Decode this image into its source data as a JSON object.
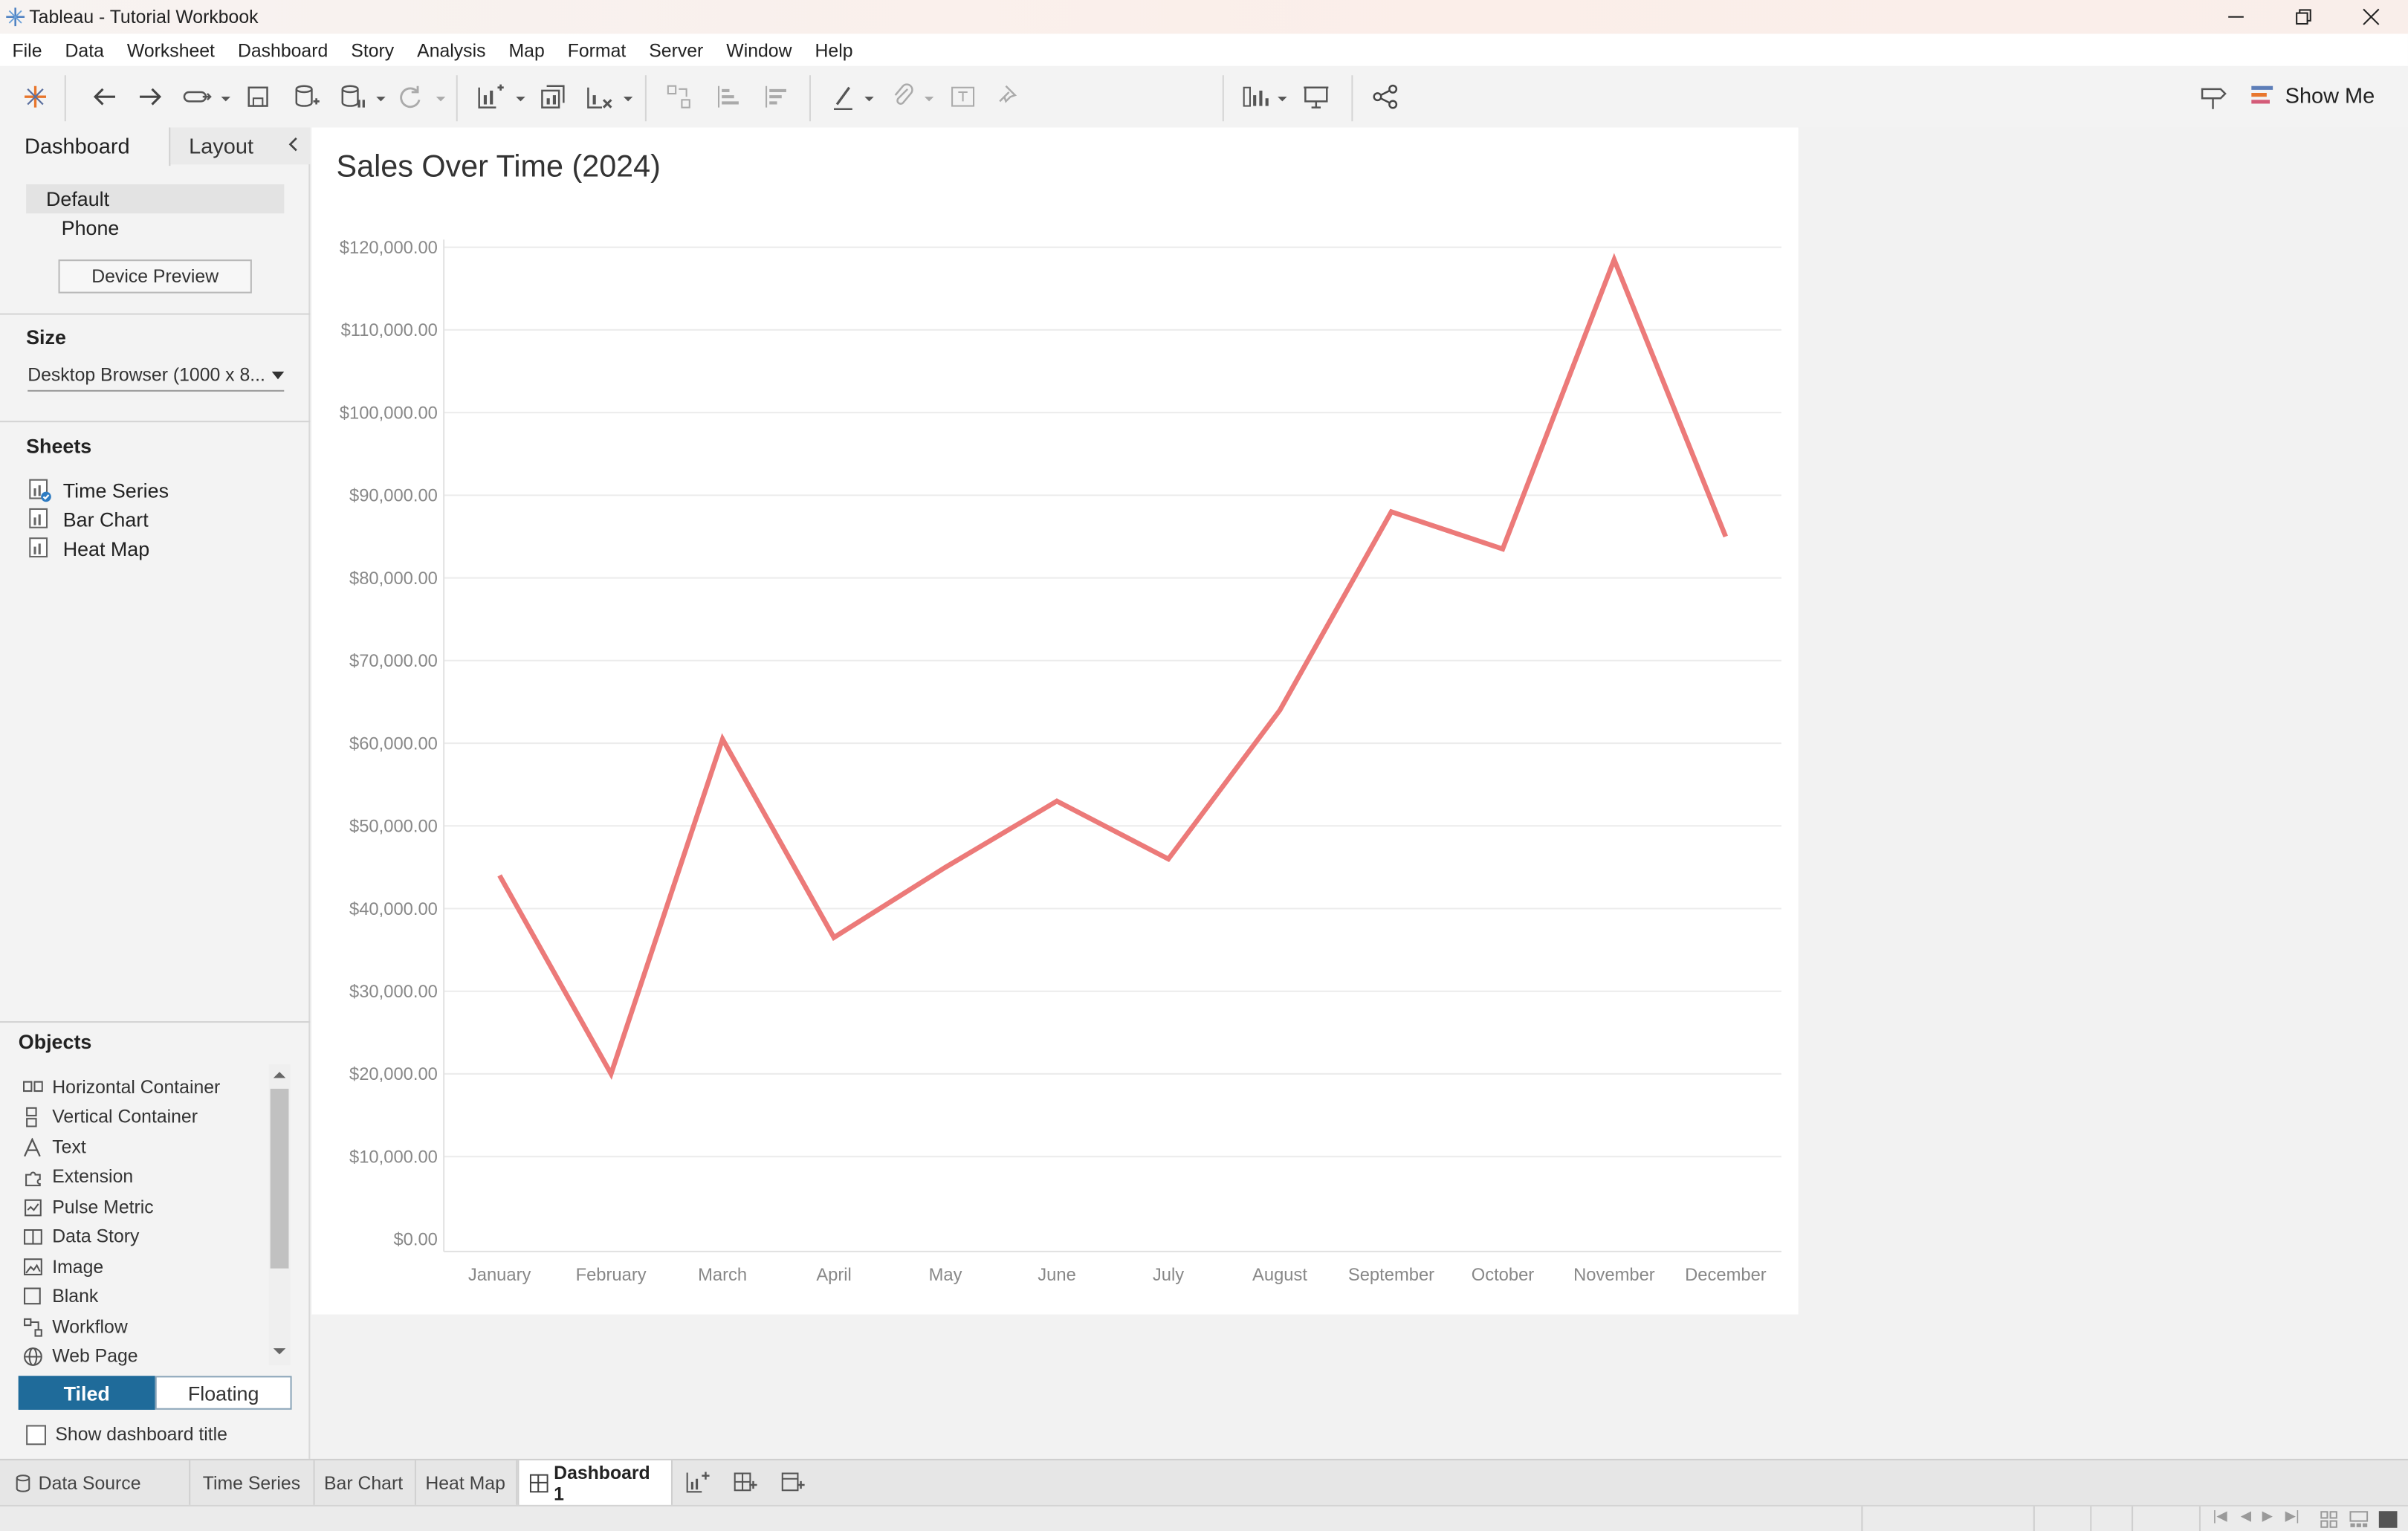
{
  "window": {
    "title": "Tableau - Tutorial Workbook",
    "controls": [
      "minimize",
      "restore",
      "close"
    ]
  },
  "menu": [
    "File",
    "Data",
    "Worksheet",
    "Dashboard",
    "Story",
    "Analysis",
    "Map",
    "Format",
    "Server",
    "Window",
    "Help"
  ],
  "toolbar": {
    "show_me_label": "Show Me"
  },
  "left_panel": {
    "tabs": {
      "dashboard": "Dashboard",
      "layout": "Layout"
    },
    "devices": {
      "default": "Default",
      "phone": "Phone",
      "preview_button": "Device Preview"
    },
    "size": {
      "header": "Size",
      "value": "Desktop Browser (1000 x 8..."
    },
    "sheets": {
      "header": "Sheets",
      "items": [
        "Time Series",
        "Bar Chart",
        "Heat Map"
      ]
    },
    "objects": {
      "header": "Objects",
      "items": [
        "Horizontal Container",
        "Vertical Container",
        "Text",
        "Extension",
        "Pulse Metric",
        "Data Story",
        "Image",
        "Blank",
        "Workflow",
        "Web Page"
      ]
    },
    "mode": {
      "tiled": "Tiled",
      "floating": "Floating",
      "selected": "Tiled"
    },
    "show_title_label": "Show dashboard title",
    "show_title_checked": false
  },
  "chart_data": {
    "type": "line",
    "title": "Sales Over Time (2024)",
    "categories": [
      "January",
      "February",
      "March",
      "April",
      "May",
      "June",
      "July",
      "August",
      "September",
      "October",
      "November",
      "December"
    ],
    "values": [
      44000,
      20000,
      60500,
      36500,
      45000,
      53000,
      46000,
      64000,
      88000,
      83500,
      118500,
      85000
    ],
    "y_ticks": [
      "$0.00",
      "$10,000.00",
      "$20,000.00",
      "$30,000.00",
      "$40,000.00",
      "$50,000.00",
      "$60,000.00",
      "$70,000.00",
      "$80,000.00",
      "$90,000.00",
      "$100,000.00",
      "$110,000.00",
      "$120,000.00"
    ],
    "ylim": [
      0,
      120000
    ],
    "grid": true,
    "line_color": "#ec7a79"
  },
  "sheet_tabs": {
    "data_source": "Data Source",
    "tabs": [
      "Time Series",
      "Bar Chart",
      "Heat Map"
    ],
    "active": "Dashboard 1"
  }
}
